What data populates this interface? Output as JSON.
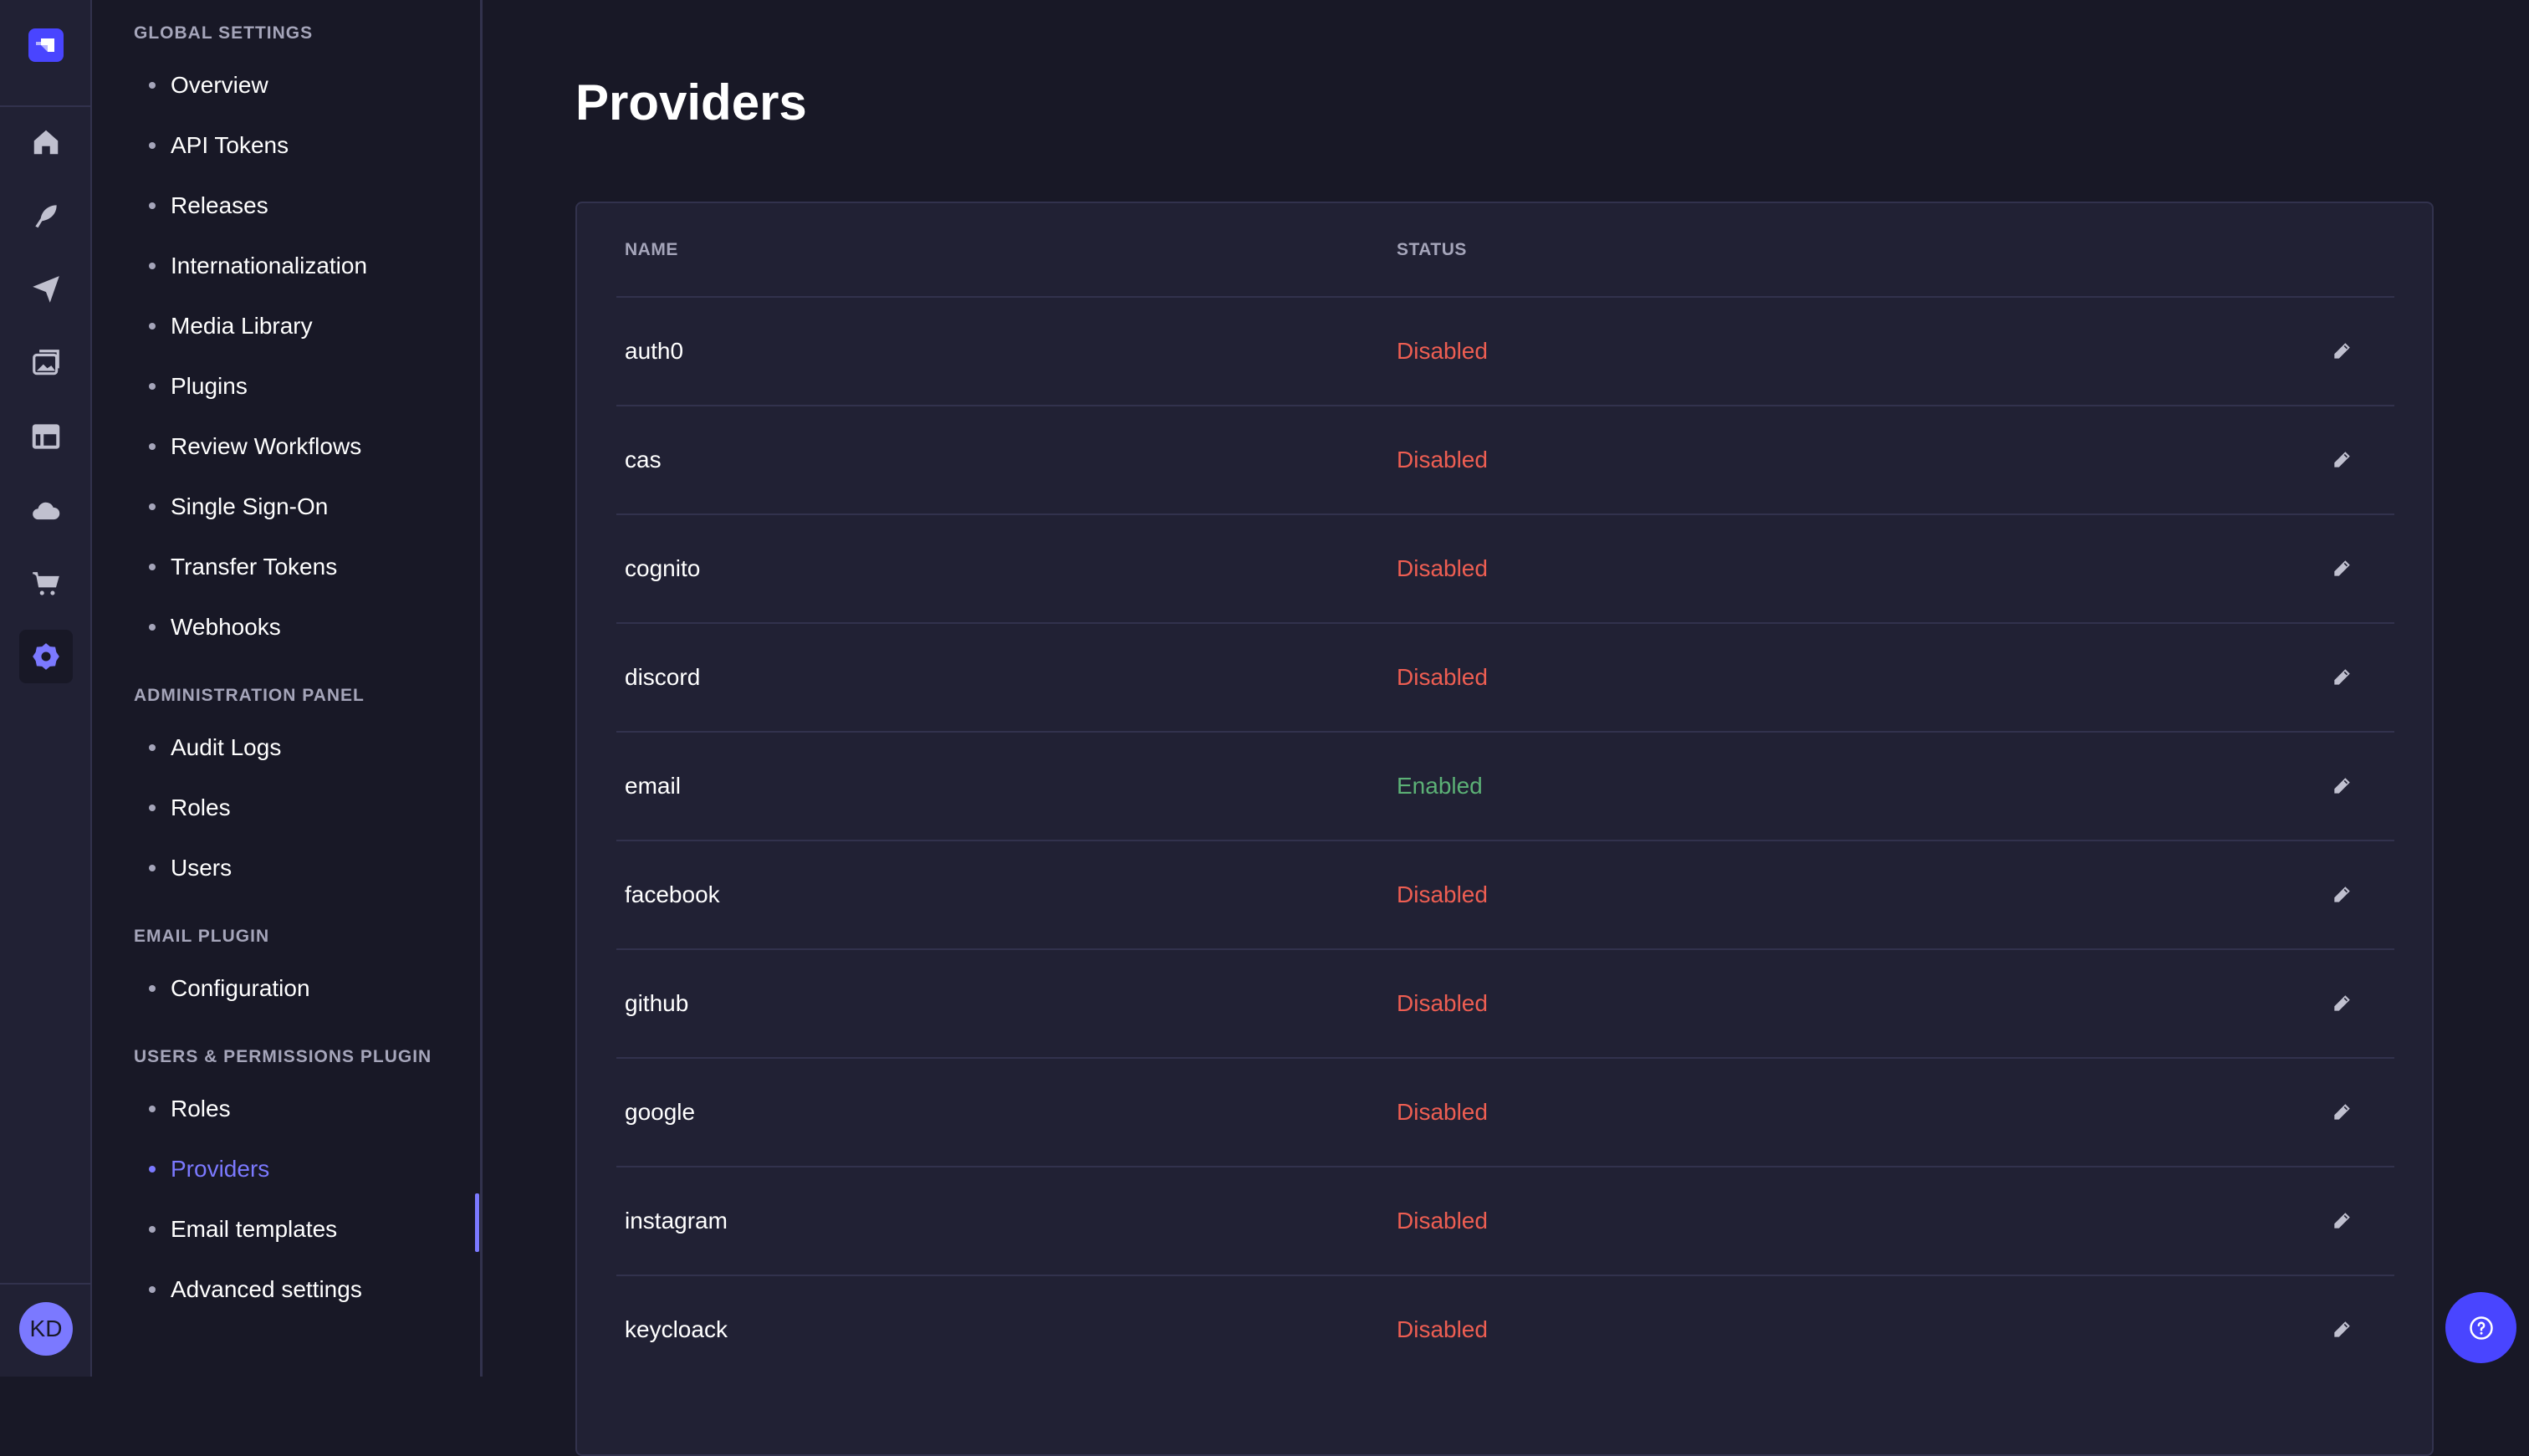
{
  "user": {
    "initials": "KD"
  },
  "colors": {
    "accent": "#7b79ff",
    "brand": "#4945ff",
    "disabled": "#ee5e52",
    "enabled": "#5cb176"
  },
  "rail": {
    "icons": [
      "home-icon",
      "content-manager-feather-icon",
      "deploy-plane-icon",
      "media-library-icon",
      "layout-icon",
      "cloud-icon",
      "marketplace-cart-icon",
      "settings-gear-icon"
    ],
    "active": "settings-gear-icon"
  },
  "nav": {
    "sections": [
      {
        "title": "GLOBAL SETTINGS",
        "items": [
          "Overview",
          "API Tokens",
          "Releases",
          "Internationalization",
          "Media Library",
          "Plugins",
          "Review Workflows",
          "Single Sign-On",
          "Transfer Tokens",
          "Webhooks"
        ]
      },
      {
        "title": "ADMINISTRATION PANEL",
        "items": [
          "Audit Logs",
          "Roles",
          "Users"
        ]
      },
      {
        "title": "EMAIL PLUGIN",
        "items": [
          "Configuration"
        ]
      },
      {
        "title": "USERS & PERMISSIONS PLUGIN",
        "items": [
          "Roles",
          "Providers",
          "Email templates",
          "Advanced settings"
        ]
      }
    ],
    "active": "Providers"
  },
  "page": {
    "title": "Providers"
  },
  "table": {
    "headers": {
      "name": "NAME",
      "status": "STATUS"
    },
    "rows": [
      {
        "name": "auth0",
        "status": "Disabled"
      },
      {
        "name": "cas",
        "status": "Disabled"
      },
      {
        "name": "cognito",
        "status": "Disabled"
      },
      {
        "name": "discord",
        "status": "Disabled"
      },
      {
        "name": "email",
        "status": "Enabled"
      },
      {
        "name": "facebook",
        "status": "Disabled"
      },
      {
        "name": "github",
        "status": "Disabled"
      },
      {
        "name": "google",
        "status": "Disabled"
      },
      {
        "name": "instagram",
        "status": "Disabled"
      },
      {
        "name": "keycloack",
        "status": "Disabled"
      }
    ]
  }
}
